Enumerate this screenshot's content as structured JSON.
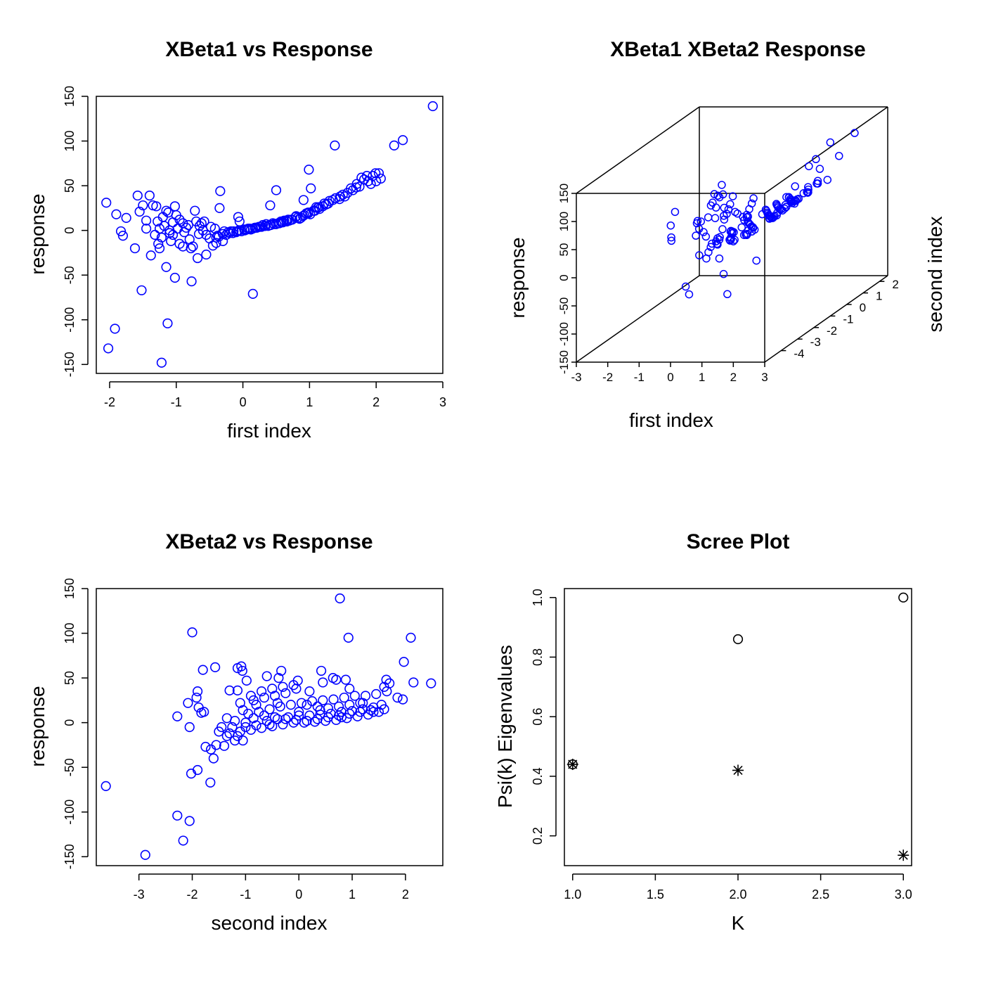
{
  "colors": {
    "points": "#0000FF",
    "axes": "#000000",
    "background": "#FFFFFF",
    "scree_points": "#000000"
  },
  "chart_data": [
    {
      "type": "scatter",
      "title": "XBeta1 vs Response",
      "xlabel": "first index",
      "ylabel": "response",
      "xlim": [
        -2.2,
        3.0
      ],
      "ylim": [
        -160,
        150
      ],
      "xticks": [
        -2,
        -1,
        0,
        1,
        2,
        3
      ],
      "yticks": [
        -150,
        -100,
        -50,
        0,
        50,
        100,
        150
      ],
      "marker": "open-circle",
      "points": [
        [
          2.85,
          139
        ],
        [
          2.4,
          101
        ],
        [
          2.27,
          95
        ],
        [
          1.38,
          95
        ],
        [
          0.99,
          68
        ],
        [
          1.02,
          47
        ],
        [
          0.5,
          45
        ],
        [
          -0.34,
          44
        ],
        [
          0.41,
          28
        ],
        [
          0.91,
          34
        ],
        [
          1.99,
          64
        ],
        [
          2.04,
          64
        ],
        [
          1.95,
          61
        ],
        [
          1.86,
          61
        ],
        [
          1.78,
          59
        ],
        [
          1.71,
          52
        ],
        [
          1.62,
          47
        ],
        [
          1.53,
          38
        ],
        [
          1.46,
          38
        ],
        [
          1.39,
          36
        ],
        [
          1.3,
          33
        ],
        [
          1.22,
          30
        ],
        [
          1.14,
          26
        ],
        [
          1.06,
          22
        ],
        [
          0.98,
          19
        ],
        [
          0.9,
          16
        ],
        [
          0.82,
          14
        ],
        [
          0.74,
          12
        ],
        [
          0.66,
          10
        ],
        [
          0.58,
          9
        ],
        [
          0.5,
          7
        ],
        [
          0.42,
          6
        ],
        [
          0.34,
          5
        ],
        [
          0.26,
          4
        ],
        [
          0.18,
          3
        ],
        [
          0.1,
          2
        ],
        [
          0.02,
          1
        ],
        [
          -0.06,
          0
        ],
        [
          -0.14,
          -1
        ],
        [
          -0.22,
          -2
        ],
        [
          -0.3,
          -4
        ],
        [
          -0.38,
          -6
        ],
        [
          1.88,
          55
        ],
        [
          2.07,
          58
        ],
        [
          1.7,
          48
        ],
        [
          1.57,
          42
        ],
        [
          1.45,
          35
        ],
        [
          1.28,
          30
        ],
        [
          1.15,
          24
        ],
        [
          1.01,
          18
        ],
        [
          0.87,
          14
        ],
        [
          0.73,
          12
        ],
        [
          0.6,
          9
        ],
        [
          0.47,
          7
        ],
        [
          0.33,
          5
        ],
        [
          0.21,
          3
        ],
        [
          0.08,
          2
        ],
        [
          -0.05,
          0
        ],
        [
          1.2,
          27
        ],
        [
          1.08,
          22
        ],
        [
          0.95,
          19
        ],
        [
          0.79,
          15
        ],
        [
          0.65,
          11
        ],
        [
          0.53,
          8
        ],
        [
          0.38,
          5
        ],
        [
          0.24,
          4
        ],
        [
          0.12,
          1
        ],
        [
          -0.02,
          -1
        ],
        [
          -0.15,
          -3
        ],
        [
          0.85,
          13
        ],
        [
          0.7,
          11
        ],
        [
          0.55,
          8
        ],
        [
          0.4,
          6
        ],
        [
          0.28,
          4
        ],
        [
          0.15,
          2
        ],
        [
          0.03,
          0
        ],
        [
          -0.1,
          -2
        ],
        [
          -0.25,
          -5
        ],
        [
          -0.4,
          -8
        ],
        [
          1.65,
          45
        ],
        [
          1.5,
          40
        ],
        [
          1.35,
          34
        ],
        [
          1.25,
          29
        ],
        [
          1.12,
          25
        ],
        [
          0.98,
          20
        ],
        [
          0.8,
          16
        ],
        [
          0.68,
          12
        ],
        [
          0.57,
          10
        ],
        [
          0.45,
          8
        ],
        [
          0.3,
          6
        ],
        [
          0.19,
          3
        ],
        [
          0.06,
          1
        ],
        [
          -0.08,
          -1
        ],
        [
          -0.2,
          -3
        ],
        [
          -0.36,
          -7
        ],
        [
          -0.07,
          15
        ],
        [
          -0.05,
          10
        ],
        [
          0.15,
          -71
        ],
        [
          -0.45,
          -17
        ],
        [
          -0.5,
          -9
        ],
        [
          -0.55,
          -5
        ],
        [
          -0.6,
          0
        ],
        [
          -0.65,
          5
        ],
        [
          -0.7,
          10
        ],
        [
          -0.72,
          22
        ],
        [
          -0.75,
          -18
        ],
        [
          -0.78,
          -20
        ],
        [
          -0.8,
          -10
        ],
        [
          -0.85,
          3
        ],
        [
          -0.9,
          8
        ],
        [
          -0.95,
          12
        ],
        [
          -1.0,
          17
        ],
        [
          -1.02,
          27
        ],
        [
          -1.05,
          -5
        ],
        [
          -1.08,
          -12
        ],
        [
          -1.1,
          0
        ],
        [
          -1.12,
          20
        ],
        [
          -1.15,
          22
        ],
        [
          -1.18,
          5
        ],
        [
          -1.2,
          15
        ],
        [
          -1.22,
          -8
        ],
        [
          -1.25,
          -20
        ],
        [
          -1.28,
          10
        ],
        [
          -1.3,
          27
        ],
        [
          -1.35,
          28
        ],
        [
          -1.4,
          39
        ],
        [
          -1.45,
          11
        ],
        [
          -1.5,
          28
        ],
        [
          -1.55,
          21
        ],
        [
          -1.58,
          39
        ],
        [
          -1.62,
          -20
        ],
        [
          -1.75,
          14
        ],
        [
          -1.8,
          -6
        ],
        [
          -1.83,
          -1
        ],
        [
          -1.9,
          18
        ],
        [
          -2.05,
          31
        ],
        [
          -1.92,
          -110
        ],
        [
          -2.02,
          -132
        ],
        [
          -1.13,
          -104
        ],
        [
          -1.22,
          -148
        ],
        [
          -1.52,
          -67
        ],
        [
          -1.02,
          -53
        ],
        [
          -1.15,
          -41
        ],
        [
          -0.77,
          -57
        ],
        [
          -0.68,
          -31
        ],
        [
          -0.9,
          -18
        ],
        [
          -0.55,
          -27
        ],
        [
          -0.4,
          -14
        ],
        [
          -0.3,
          -12
        ],
        [
          -0.35,
          25
        ],
        [
          -0.58,
          10
        ],
        [
          -0.66,
          -4
        ],
        [
          -1.38,
          -28
        ],
        [
          -1.27,
          -15
        ],
        [
          -1.32,
          -5
        ],
        [
          -1.1,
          -3
        ],
        [
          -0.98,
          2
        ],
        [
          -0.88,
          -2
        ],
        [
          -0.82,
          6
        ],
        [
          -0.62,
          8
        ],
        [
          -0.48,
          4
        ],
        [
          -0.42,
          2
        ],
        [
          -0.28,
          -1
        ],
        [
          -0.18,
          -1
        ],
        [
          -1.45,
          2
        ],
        [
          -1.25,
          2
        ],
        [
          -1.05,
          9
        ],
        [
          -0.95,
          -15
        ],
        [
          1.75,
          49
        ],
        [
          1.82,
          57
        ],
        [
          1.92,
          52
        ],
        [
          2.0,
          55
        ],
        [
          0.35,
          7
        ],
        [
          0.62,
          11
        ],
        [
          0.92,
          17
        ],
        [
          1.1,
          26
        ]
      ]
    },
    {
      "type": "scatter3d",
      "title": "XBeta1 XBeta2 Response",
      "xlabel": "first index",
      "ylabel": "response",
      "zlabel": "second index",
      "xlim": [
        -3,
        3
      ],
      "ylim": [
        -150,
        150
      ],
      "zlim": [
        -5,
        2.5
      ],
      "xticks": [
        -3,
        -2,
        -1,
        0,
        1,
        2,
        3
      ],
      "yticks": [
        -150,
        -100,
        -50,
        0,
        50,
        100,
        150
      ],
      "zticks": [
        -4,
        -3,
        -2,
        -1,
        0,
        1,
        2
      ],
      "marker": "open-circle"
    },
    {
      "type": "scatter",
      "title": "XBeta2 vs Response",
      "xlabel": "second index",
      "ylabel": "response",
      "xlim": [
        -3.8,
        2.7
      ],
      "ylim": [
        -160,
        150
      ],
      "xticks": [
        -3,
        -2,
        -1,
        0,
        1,
        2
      ],
      "yticks": [
        -150,
        -100,
        -50,
        0,
        50,
        100,
        150
      ],
      "marker": "open-circle",
      "points": [
        [
          0.77,
          139
        ],
        [
          -2.0,
          101
        ],
        [
          0.93,
          95
        ],
        [
          2.1,
          95
        ],
        [
          1.97,
          68
        ],
        [
          2.15,
          45
        ],
        [
          2.48,
          44
        ],
        [
          -1.08,
          63
        ],
        [
          -1.06,
          58
        ],
        [
          -1.15,
          61
        ],
        [
          -1.8,
          59
        ],
        [
          -1.57,
          62
        ],
        [
          -0.33,
          58
        ],
        [
          0.42,
          58
        ],
        [
          -0.02,
          47
        ],
        [
          0.64,
          50
        ],
        [
          0.88,
          48
        ],
        [
          1.64,
          48
        ],
        [
          -0.38,
          50
        ],
        [
          -0.6,
          52
        ],
        [
          -0.98,
          47
        ],
        [
          -1.3,
          36
        ],
        [
          -1.15,
          36
        ],
        [
          -1.9,
          35
        ],
        [
          -1.92,
          28
        ],
        [
          -2.08,
          22
        ],
        [
          -1.88,
          17
        ],
        [
          -1.83,
          11
        ],
        [
          -1.78,
          12
        ],
        [
          -2.28,
          7
        ],
        [
          -2.05,
          -5
        ],
        [
          -3.62,
          -71
        ],
        [
          -2.02,
          -57
        ],
        [
          -1.9,
          -53
        ],
        [
          -1.66,
          -67
        ],
        [
          -2.88,
          -148
        ],
        [
          -2.17,
          -132
        ],
        [
          -2.05,
          -110
        ],
        [
          -2.28,
          -104
        ],
        [
          -1.6,
          -40
        ],
        [
          -1.65,
          -30
        ],
        [
          -1.75,
          -27
        ],
        [
          -1.55,
          -25
        ],
        [
          -1.4,
          -26
        ],
        [
          -1.2,
          -20
        ],
        [
          -1.05,
          -20
        ],
        [
          -1.3,
          -12
        ],
        [
          -1.1,
          -10
        ],
        [
          -0.9,
          -8
        ],
        [
          -0.7,
          -6
        ],
        [
          -0.5,
          -4
        ],
        [
          -0.3,
          -2
        ],
        [
          -0.1,
          0
        ],
        [
          0.1,
          0
        ],
        [
          0.3,
          1
        ],
        [
          0.5,
          2
        ],
        [
          0.7,
          3
        ],
        [
          0.9,
          5
        ],
        [
          1.1,
          7
        ],
        [
          1.3,
          9
        ],
        [
          1.5,
          12
        ],
        [
          1.6,
          15
        ],
        [
          -1.2,
          2
        ],
        [
          -1.0,
          0
        ],
        [
          -0.8,
          -3
        ],
        [
          -0.6,
          2
        ],
        [
          -0.4,
          4
        ],
        [
          -0.2,
          6
        ],
        [
          0.0,
          8
        ],
        [
          0.2,
          8
        ],
        [
          0.4,
          9
        ],
        [
          0.6,
          10
        ],
        [
          0.8,
          12
        ],
        [
          1.0,
          13
        ],
        [
          1.2,
          15
        ],
        [
          1.4,
          17
        ],
        [
          -0.95,
          10
        ],
        [
          -0.75,
          12
        ],
        [
          -0.55,
          15
        ],
        [
          -0.35,
          18
        ],
        [
          -0.15,
          20
        ],
        [
          0.05,
          22
        ],
        [
          0.25,
          24
        ],
        [
          0.45,
          25
        ],
        [
          0.65,
          26
        ],
        [
          0.85,
          28
        ],
        [
          1.05,
          30
        ],
        [
          1.25,
          30
        ],
        [
          1.45,
          32
        ],
        [
          1.65,
          35
        ],
        [
          1.85,
          28
        ],
        [
          1.95,
          26
        ],
        [
          -1.1,
          22
        ],
        [
          -0.85,
          25
        ],
        [
          -0.65,
          28
        ],
        [
          -0.45,
          30
        ],
        [
          -0.25,
          33
        ],
        [
          -0.05,
          38
        ],
        [
          0.2,
          35
        ],
        [
          0.45,
          45
        ],
        [
          0.7,
          48
        ],
        [
          0.95,
          38
        ],
        [
          1.2,
          22
        ],
        [
          1.4,
          12
        ],
        [
          -0.9,
          30
        ],
        [
          -0.7,
          35
        ],
        [
          -0.5,
          38
        ],
        [
          -0.3,
          40
        ],
        [
          -0.1,
          42
        ],
        [
          0.15,
          20
        ],
        [
          0.35,
          18
        ],
        [
          0.55,
          16
        ],
        [
          0.75,
          18
        ],
        [
          0.95,
          20
        ],
        [
          1.15,
          22
        ],
        [
          -1.35,
          5
        ],
        [
          -1.25,
          -5
        ],
        [
          -1.15,
          -15
        ],
        [
          -1.0,
          -5
        ],
        [
          -0.85,
          5
        ],
        [
          -0.65,
          8
        ],
        [
          -0.45,
          6
        ],
        [
          -0.25,
          4
        ],
        [
          -0.05,
          3
        ],
        [
          0.15,
          2
        ],
        [
          0.35,
          4
        ],
        [
          0.55,
          6
        ],
        [
          0.75,
          8
        ],
        [
          0.95,
          10
        ],
        [
          1.15,
          12
        ],
        [
          1.35,
          14
        ],
        [
          1.55,
          20
        ],
        [
          -1.5,
          -10
        ],
        [
          -1.45,
          -5
        ],
        [
          -1.35,
          -15
        ],
        [
          -0.8,
          20
        ],
        [
          -0.4,
          22
        ],
        [
          0.0,
          12
        ],
        [
          0.4,
          14
        ],
        [
          0.8,
          6
        ],
        [
          1.6,
          40
        ],
        [
          1.7,
          44
        ],
        [
          -1.05,
          14
        ],
        [
          -0.55,
          -2
        ]
      ]
    },
    {
      "type": "scatter",
      "title": "Scree Plot",
      "xlabel": "K",
      "ylabel": "Psi(k) Eigenvalues",
      "xlim": [
        0.95,
        3.05
      ],
      "ylim": [
        0.1,
        1.03
      ],
      "xticks": [
        1.0,
        1.5,
        2.0,
        2.5,
        3.0
      ],
      "yticks": [
        0.2,
        0.4,
        0.6,
        0.8,
        1.0
      ],
      "series": [
        {
          "marker": "open-circle",
          "x": [
            1,
            2,
            3
          ],
          "values": [
            0.44,
            0.86,
            1.0
          ]
        },
        {
          "marker": "asterisk",
          "x": [
            1,
            2,
            3
          ],
          "values": [
            0.44,
            0.42,
            0.135
          ]
        }
      ]
    }
  ]
}
